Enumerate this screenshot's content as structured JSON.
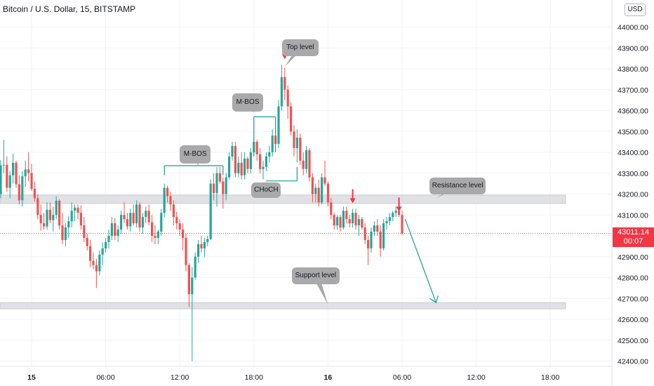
{
  "chart_data": {
    "type": "candlestick",
    "title": "Bitcoin / U.S. Dollar, 15, BITSTAMP",
    "currency": "USD",
    "ylim": [
      42370,
      44060
    ],
    "y_ticks": [
      42400,
      42500,
      42600,
      42700,
      42800,
      42900,
      43000,
      43100,
      43200,
      43300,
      43400,
      43500,
      43600,
      43700,
      43800,
      43900,
      44000
    ],
    "y_tick_labels": [
      "42400.00",
      "42500.00",
      "42600.00",
      "42700.00",
      "42800.00",
      "42900.00",
      "43000.00",
      "43100.00",
      "43200.00",
      "43300.00",
      "43400.00",
      "43500.00",
      "43600.00",
      "43700.00",
      "43800.00",
      "43900.00",
      "44000.00"
    ],
    "x_ticks": [
      {
        "label": "15",
        "bold": true,
        "x": 0
      },
      {
        "label": "06:00",
        "bold": false,
        "x": 24
      },
      {
        "label": "12:00",
        "bold": false,
        "x": 48
      },
      {
        "label": "18:00",
        "bold": false,
        "x": 72
      },
      {
        "label": "16",
        "bold": true,
        "x": 96
      },
      {
        "label": "06:00",
        "bold": false,
        "x": 120
      },
      {
        "label": "12:00",
        "bold": false,
        "x": 144
      },
      {
        "label": "18:00",
        "bold": false,
        "x": 168
      }
    ],
    "x_unit": "15-minute bars from start of day 15",
    "candles": [
      [
        -11,
        43262,
        43300,
        43182,
        43200
      ],
      [
        -10,
        43200,
        43362,
        43180,
        43338
      ],
      [
        -9,
        43338,
        43460,
        43300,
        43340
      ],
      [
        -8,
        43340,
        43380,
        43210,
        43230
      ],
      [
        -7,
        43230,
        43310,
        43180,
        43290
      ],
      [
        -6,
        43290,
        43392,
        43250,
        43350
      ],
      [
        -5,
        43350,
        43360,
        43230,
        43247
      ],
      [
        -4,
        43247,
        43290,
        43150,
        43170
      ],
      [
        -3,
        43170,
        43310,
        43140,
        43285
      ],
      [
        -2,
        43285,
        43360,
        43235,
        43318
      ],
      [
        -1,
        43318,
        43400,
        43262,
        43301
      ],
      [
        0,
        43301,
        43344,
        43215,
        43225
      ],
      [
        1,
        43225,
        43260,
        43164,
        43180
      ],
      [
        2,
        43180,
        43199,
        43080,
        43100
      ],
      [
        3,
        43100,
        43150,
        43025,
        43060
      ],
      [
        4,
        43060,
        43110,
        43030,
        43045
      ],
      [
        5,
        43045,
        43160,
        43030,
        43125
      ],
      [
        6,
        43125,
        43160,
        43060,
        43075
      ],
      [
        7,
        43075,
        43140,
        43020,
        43100
      ],
      [
        8,
        43100,
        43190,
        43080,
        43168
      ],
      [
        9,
        43168,
        43175,
        43030,
        43050
      ],
      [
        10,
        43050,
        43110,
        42960,
        42980
      ],
      [
        11,
        42980,
        43060,
        42950,
        43040
      ],
      [
        12,
        43040,
        43095,
        42990,
        43070
      ],
      [
        13,
        43070,
        43160,
        43040,
        43120
      ],
      [
        14,
        43120,
        43150,
        43070,
        43135
      ],
      [
        15,
        43135,
        43150,
        43080,
        43110
      ],
      [
        16,
        43110,
        43145,
        43030,
        43050
      ],
      [
        17,
        43050,
        43090,
        42970,
        42990
      ],
      [
        18,
        42990,
        43010,
        42930,
        42950
      ],
      [
        19,
        42950,
        42980,
        42850,
        42880
      ],
      [
        20,
        42880,
        42920,
        42840,
        42860
      ],
      [
        21,
        42860,
        42890,
        42750,
        42830
      ],
      [
        22,
        42830,
        42930,
        42810,
        42910
      ],
      [
        23,
        42910,
        42970,
        42860,
        42940
      ],
      [
        24,
        42940,
        42990,
        42920,
        42970
      ],
      [
        25,
        42970,
        43030,
        42940,
        43000
      ],
      [
        26,
        43000,
        43090,
        42980,
        43060
      ],
      [
        27,
        43060,
        43085,
        42980,
        43000
      ],
      [
        28,
        43000,
        43050,
        42970,
        43030
      ],
      [
        29,
        43030,
        43120,
        43010,
        43100
      ],
      [
        30,
        43100,
        43160,
        43060,
        43080
      ],
      [
        31,
        43080,
        43110,
        43030,
        43045
      ],
      [
        32,
        43045,
        43130,
        43020,
        43110
      ],
      [
        33,
        43110,
        43150,
        43050,
        43060
      ],
      [
        34,
        43060,
        43170,
        43040,
        43150
      ],
      [
        35,
        43150,
        43160,
        43020,
        43040
      ],
      [
        36,
        43040,
        43110,
        43010,
        43090
      ],
      [
        37,
        43090,
        43140,
        43060,
        43120
      ],
      [
        38,
        43120,
        43150,
        43050,
        43065
      ],
      [
        39,
        43065,
        43100,
        42970,
        43000
      ],
      [
        40,
        43000,
        43050,
        42960,
        42990
      ],
      [
        41,
        42990,
        43030,
        42960,
        43020
      ],
      [
        42,
        43020,
        43130,
        43000,
        43110
      ],
      [
        43,
        43110,
        43250,
        43090,
        43230
      ],
      [
        44,
        43230,
        43240,
        43160,
        43190
      ],
      [
        45,
        43190,
        43210,
        43120,
        43150
      ],
      [
        46,
        43150,
        43170,
        43050,
        43090
      ],
      [
        47,
        43090,
        43115,
        43030,
        43060
      ],
      [
        48,
        43060,
        43080,
        43000,
        43030
      ],
      [
        49,
        43030,
        43060,
        42930,
        42990
      ],
      [
        50,
        42990,
        43010,
        42830,
        42860
      ],
      [
        51,
        42860,
        42870,
        42660,
        42720
      ],
      [
        52,
        42720,
        42850,
        42400,
        42800
      ],
      [
        53,
        42800,
        42920,
        42790,
        42900
      ],
      [
        54,
        42900,
        42980,
        42870,
        42960
      ],
      [
        55,
        42960,
        43000,
        42920,
        42940
      ],
      [
        56,
        42940,
        42990,
        42900,
        42970
      ],
      [
        57,
        42970,
        43000,
        42950,
        42985
      ],
      [
        58,
        42985,
        43270,
        42980,
        43250
      ],
      [
        59,
        43250,
        43300,
        43170,
        43205
      ],
      [
        60,
        43205,
        43330,
        43140,
        43300
      ],
      [
        61,
        43300,
        43330,
        43250,
        43260
      ],
      [
        62,
        43260,
        43280,
        43130,
        43200
      ],
      [
        63,
        43200,
        43300,
        43170,
        43280
      ],
      [
        64,
        43280,
        43400,
        43270,
        43380
      ],
      [
        65,
        43380,
        43450,
        43360,
        43430
      ],
      [
        66,
        43430,
        43450,
        43280,
        43300
      ],
      [
        67,
        43300,
        43380,
        43280,
        43350
      ],
      [
        68,
        43350,
        43400,
        43270,
        43290
      ],
      [
        69,
        43290,
        43400,
        43270,
        43370
      ],
      [
        70,
        43370,
        43380,
        43300,
        43320
      ],
      [
        71,
        43320,
        43420,
        43300,
        43400
      ],
      [
        72,
        43400,
        43470,
        43380,
        43450
      ],
      [
        73,
        43450,
        43460,
        43360,
        43390
      ],
      [
        74,
        43390,
        43420,
        43300,
        43320
      ],
      [
        75,
        43320,
        43360,
        43270,
        43330
      ],
      [
        76,
        43330,
        43400,
        43310,
        43380
      ],
      [
        77,
        43380,
        43430,
        43350,
        43400
      ],
      [
        78,
        43400,
        43510,
        43380,
        43480
      ],
      [
        79,
        43480,
        43560,
        43420,
        43440
      ],
      [
        80,
        43440,
        43650,
        43420,
        43620
      ],
      [
        81,
        43620,
        43820,
        43600,
        43760
      ],
      [
        82,
        43760,
        43805,
        43650,
        43700
      ],
      [
        83,
        43700,
        43720,
        43560,
        43620
      ],
      [
        84,
        43620,
        43640,
        43480,
        43500
      ],
      [
        85,
        43500,
        43530,
        43380,
        43420
      ],
      [
        86,
        43420,
        43510,
        43350,
        43470
      ],
      [
        87,
        43470,
        43490,
        43340,
        43360
      ],
      [
        88,
        43360,
        43400,
        43290,
        43320
      ],
      [
        89,
        43320,
        43430,
        43300,
        43410
      ],
      [
        90,
        43410,
        43420,
        43260,
        43280
      ],
      [
        91,
        43280,
        43300,
        43160,
        43200
      ],
      [
        92,
        43200,
        43250,
        43160,
        43230
      ],
      [
        93,
        43230,
        43270,
        43140,
        43160
      ],
      [
        94,
        43160,
        43300,
        43150,
        43280
      ],
      [
        95,
        43280,
        43360,
        43240,
        43250
      ],
      [
        96,
        43250,
        43260,
        43140,
        43160
      ],
      [
        97,
        43160,
        43180,
        43080,
        43100
      ],
      [
        98,
        43100,
        43110,
        43030,
        43050
      ],
      [
        99,
        43050,
        43100,
        43030,
        43090
      ],
      [
        100,
        43090,
        43100,
        43020,
        43040
      ],
      [
        101,
        43040,
        43140,
        43030,
        43120
      ],
      [
        102,
        43120,
        43140,
        43060,
        43080
      ],
      [
        103,
        43080,
        43100,
        43040,
        43060
      ],
      [
        104,
        43060,
        43130,
        43040,
        43110
      ],
      [
        105,
        43110,
        43130,
        43030,
        43050
      ],
      [
        106,
        43050,
        43100,
        43000,
        43080
      ],
      [
        107,
        43080,
        43090,
        43030,
        43040
      ],
      [
        108,
        43040,
        43060,
        42960,
        42980
      ],
      [
        109,
        42980,
        43000,
        42860,
        42940
      ],
      [
        110,
        42940,
        43040,
        42920,
        43020
      ],
      [
        111,
        43020,
        43070,
        43000,
        43050
      ],
      [
        112,
        43050,
        43080,
        43000,
        43020
      ],
      [
        113,
        43020,
        43050,
        42900,
        42940
      ],
      [
        114,
        42940,
        43080,
        42930,
        43060
      ],
      [
        115,
        43060,
        43090,
        43030,
        43070
      ],
      [
        116,
        43070,
        43110,
        43050,
        43090
      ],
      [
        117,
        43090,
        43120,
        43070,
        43110
      ],
      [
        118,
        43110,
        43140,
        43090,
        43120
      ],
      [
        119,
        43120,
        43130,
        43090,
        43100
      ],
      [
        120,
        43100,
        43120,
        43005,
        43011
      ]
    ],
    "zones": [
      {
        "label": "Resistance level",
        "y_low": 43155,
        "y_high": 43195
      },
      {
        "label": "Support level",
        "y_low": 42650,
        "y_high": 42680
      }
    ],
    "annotations": [
      {
        "text": "Top level",
        "x": 87,
        "y": 43900,
        "arrow_to_x": 82,
        "arrow_to_y": 43810
      },
      {
        "text": "M-BOS",
        "x": 70,
        "y": 43640,
        "arrow_to_x": 72,
        "arrow_to_y": 43590
      },
      {
        "text": "M-BOS",
        "x": 53,
        "y": 43390,
        "arrow_to_x": 54,
        "arrow_to_y": 43335
      },
      {
        "text": "CHoCH",
        "x": 76,
        "y": 43220,
        "arrow_to_x": 76,
        "arrow_to_y": 43260
      },
      {
        "text": "Resistance level",
        "x": 138,
        "y": 43240,
        "arrow_to_x": 131,
        "arrow_to_y": 43180
      },
      {
        "text": "Support level",
        "x": 92,
        "y": 42810,
        "arrow_to_x": 96,
        "arrow_to_y": 42670
      }
    ],
    "bracket_lines": [
      {
        "x1": 43,
        "x2": 62,
        "y": 43336
      },
      {
        "x1": 72,
        "x2": 79,
        "y": 43570
      },
      {
        "x1": 76,
        "x2": 86,
        "y": 43263
      }
    ],
    "red_arrows": [
      {
        "x": 82,
        "y": 43880
      },
      {
        "x": 104,
        "y": 43190
      },
      {
        "x": 119,
        "y": 43150
      }
    ],
    "projection": {
      "x1": 121,
      "y1": 43080,
      "x2": 131,
      "y2": 42680
    },
    "last_price": {
      "price": "43011.14",
      "countdown": "00:07",
      "y": 43011.14
    },
    "grid": true,
    "colors": {
      "up": "#26a69a",
      "down": "#ef5350",
      "zone": "#dcdee3",
      "bubble": "#a9a9a9",
      "arrow": "#f23645",
      "projection": "#26a69a"
    }
  }
}
